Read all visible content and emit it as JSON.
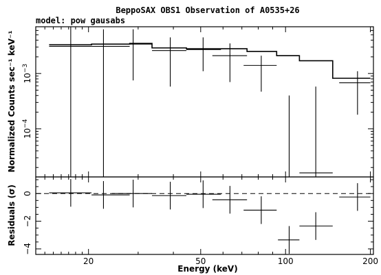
{
  "chart_data": {
    "type": "scatter",
    "title": "BeppoSAX OBS1 Observation of A0535+26",
    "subtitle": "model: pow gausabs",
    "xlabel": "Energy (keV)",
    "xscale": "log",
    "xlim": [
      13,
      205
    ],
    "x_ticks": [
      {
        "v": 20,
        "label": "20"
      },
      {
        "v": 50,
        "label": "50"
      },
      {
        "v": 100,
        "label": "100"
      },
      {
        "v": 200,
        "label": "200"
      }
    ],
    "panels": [
      {
        "name": "spectrum",
        "ylabel": "Normalized Counts sec⁻¹ keV⁻¹",
        "yscale": "log",
        "ylim": [
          1.35e-05,
          0.007
        ],
        "y_ticks": [
          {
            "v": 0.0001,
            "label_base": "10",
            "label_exp": "−4"
          },
          {
            "v": 0.001,
            "label_base": "10",
            "label_exp": "−3"
          }
        ],
        "data": [
          {
            "x": 17.3,
            "xlo": 14.5,
            "xhi": 20.5,
            "y": 0.0031,
            "ylo": 1.35e-05,
            "yhi": 0.007
          },
          {
            "x": 22.6,
            "xlo": 20.5,
            "xhi": 28.0,
            "y": 0.0031,
            "ylo": 1.35e-05,
            "yhi": 0.0063
          },
          {
            "x": 28.8,
            "xlo": 24.2,
            "xhi": 33.6,
            "y": 0.0034,
            "ylo": 0.00075,
            "yhi": 0.0063
          },
          {
            "x": 39.0,
            "xlo": 33.6,
            "xhi": 44.5,
            "y": 0.0026,
            "ylo": 0.00058,
            "yhi": 0.0045
          },
          {
            "x": 51.0,
            "xlo": 44.5,
            "xhi": 59.0,
            "y": 0.0027,
            "ylo": 0.0011,
            "yhi": 0.0045
          },
          {
            "x": 63.5,
            "xlo": 55.0,
            "xhi": 73.0,
            "y": 0.0021,
            "ylo": 0.0007,
            "yhi": 0.0035
          },
          {
            "x": 82.0,
            "xlo": 71.0,
            "xhi": 93.0,
            "y": 0.0014,
            "ylo": 0.00047,
            "yhi": 0.0021
          },
          {
            "x": 103.0,
            "xlo": 94.0,
            "xhi": 112.0,
            "y": null,
            "ylo": 1.35e-05,
            "yhi": 0.0004
          },
          {
            "x": 128.0,
            "xlo": 112.0,
            "xhi": 147.0,
            "y": 1.6e-05,
            "ylo": 1.35e-05,
            "yhi": 0.00058
          },
          {
            "x": 180.0,
            "xlo": 155.0,
            "xhi": 200.0,
            "y": 0.00068,
            "ylo": 0.00018,
            "yhi": 0.0011
          }
        ],
        "model": [
          {
            "xlo": 14.5,
            "xhi": 20.5,
            "y": 0.0033
          },
          {
            "xlo": 20.5,
            "xhi": 28.0,
            "y": 0.0034
          },
          {
            "xlo": 28.0,
            "xhi": 33.6,
            "y": 0.0035
          },
          {
            "xlo": 33.6,
            "xhi": 44.5,
            "y": 0.0029
          },
          {
            "xlo": 44.5,
            "xhi": 59.0,
            "y": 0.0028
          },
          {
            "xlo": 59.0,
            "xhi": 73.0,
            "y": 0.0028
          },
          {
            "xlo": 73.0,
            "xhi": 93.0,
            "y": 0.0025
          },
          {
            "xlo": 93.0,
            "xhi": 112.0,
            "y": 0.0021
          },
          {
            "xlo": 112.0,
            "xhi": 147.0,
            "y": 0.0017
          },
          {
            "xlo": 147.0,
            "xhi": 200.0,
            "y": 0.00082
          }
        ]
      },
      {
        "name": "residuals",
        "ylabel": "Residuals (σ)",
        "yscale": "linear",
        "ylim": [
          -4.4,
          1.2
        ],
        "y_ticks": [
          {
            "v": 0,
            "label": "0"
          },
          {
            "v": -2,
            "label": "−2"
          },
          {
            "v": -4,
            "label": "−4"
          }
        ],
        "zero_line": 0,
        "data": [
          {
            "x": 17.3,
            "xlo": 14.5,
            "xhi": 20.5,
            "y": 0.05,
            "ylo": -0.95,
            "yhi": 1.05
          },
          {
            "x": 22.6,
            "xlo": 20.5,
            "xhi": 28.0,
            "y": -0.1,
            "ylo": -1.1,
            "yhi": 0.9
          },
          {
            "x": 28.8,
            "xlo": 24.2,
            "xhi": 33.6,
            "y": 0.0,
            "ylo": -1.0,
            "yhi": 1.0
          },
          {
            "x": 39.0,
            "xlo": 33.6,
            "xhi": 44.5,
            "y": -0.15,
            "ylo": -1.15,
            "yhi": 0.85
          },
          {
            "x": 51.0,
            "xlo": 44.5,
            "xhi": 59.0,
            "y": -0.05,
            "ylo": -1.05,
            "yhi": 0.95
          },
          {
            "x": 63.5,
            "xlo": 55.0,
            "xhi": 73.0,
            "y": -0.45,
            "ylo": -1.45,
            "yhi": 0.55
          },
          {
            "x": 82.0,
            "xlo": 71.0,
            "xhi": 93.0,
            "y": -1.2,
            "ylo": -2.2,
            "yhi": -0.2
          },
          {
            "x": 103.0,
            "xlo": 94.0,
            "xhi": 112.0,
            "y": -3.35,
            "ylo": -4.35,
            "yhi": -2.35
          },
          {
            "x": 128.0,
            "xlo": 112.0,
            "xhi": 147.0,
            "y": -2.35,
            "ylo": -3.35,
            "yhi": -1.35
          },
          {
            "x": 180.0,
            "xlo": 155.0,
            "xhi": 200.0,
            "y": -0.25,
            "ylo": -1.25,
            "yhi": 0.75
          }
        ]
      }
    ]
  }
}
